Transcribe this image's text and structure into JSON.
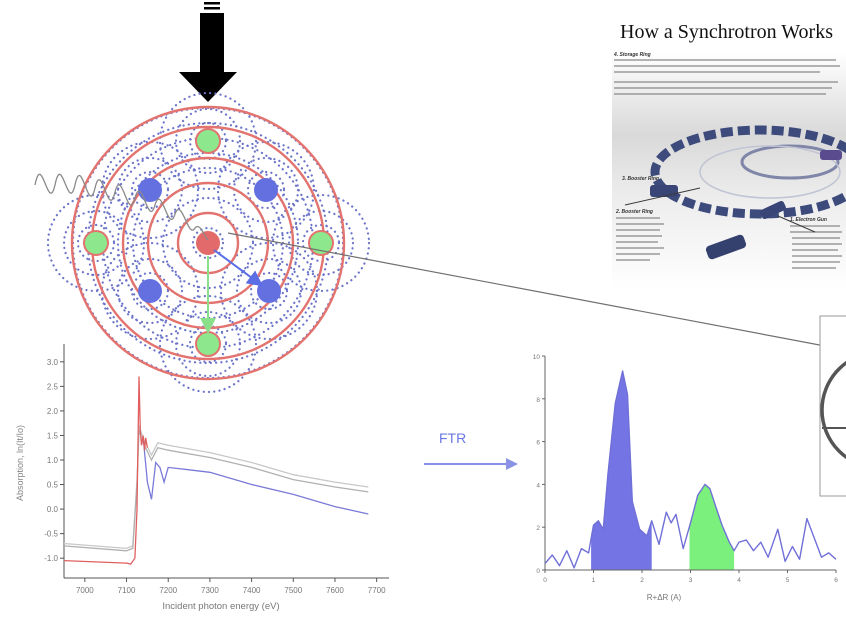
{
  "poster": {
    "title": "How a Synchrotron Works",
    "sections": [
      {
        "label": "4. Storage Ring"
      },
      {
        "label": "2. Booster Ring"
      },
      {
        "label": "3. Booster Ring"
      },
      {
        "label": "1. Electron Gun"
      }
    ]
  },
  "arrow_label": "FTR",
  "chart_data": [
    {
      "type": "line",
      "xlabel": "Incident photon energy (eV)",
      "ylabel": "Absorption, ln(It/Io)",
      "xlim": [
        6950,
        7720
      ],
      "ylim": [
        -1.2,
        3.2
      ],
      "xticks": [
        7000,
        7100,
        7200,
        7300,
        7400,
        7500,
        7600,
        7700
      ],
      "yticks": [
        -1.0,
        -0.5,
        0.0,
        0.5,
        1.0,
        1.5,
        2.0,
        2.5,
        3.0
      ],
      "ytick_labels": [
        "-1.0",
        "-0.5",
        "0.0",
        "0.5",
        "1.0",
        "1.5",
        "2.0",
        "2.5",
        "3.0"
      ],
      "series": [
        {
          "color": "#e06060",
          "x": [
            6950,
            7100,
            7110,
            7120,
            7125,
            7130,
            7133,
            7136,
            7140,
            7143,
            7146,
            7150
          ],
          "y": [
            -1.05,
            -1.1,
            -1.12,
            -1.0,
            0.0,
            2.7,
            1.6,
            1.3,
            1.5,
            1.2,
            1.45,
            1.25
          ]
        },
        {
          "color": "#7a7ad8",
          "x": [
            7140,
            7150,
            7160,
            7170,
            7180,
            7190,
            7200,
            7250,
            7300,
            7400,
            7500,
            7600,
            7680
          ],
          "y": [
            1.45,
            0.55,
            0.2,
            0.95,
            0.85,
            0.55,
            0.85,
            0.8,
            0.75,
            0.5,
            0.3,
            0.05,
            -0.1
          ]
        },
        {
          "color": "#b0b0b0",
          "x": [
            6950,
            7100,
            7115,
            7125,
            7130,
            7140,
            7160,
            7175,
            7200,
            7300,
            7400,
            7500,
            7600,
            7680
          ],
          "y": [
            -0.75,
            -0.85,
            -0.8,
            0.5,
            1.6,
            1.35,
            1.0,
            1.25,
            1.2,
            1.05,
            0.85,
            0.6,
            0.45,
            0.35
          ]
        },
        {
          "color": "#c8c8c8",
          "x": [
            6950,
            7100,
            7115,
            7125,
            7130,
            7140,
            7160,
            7175,
            7200,
            7300,
            7400,
            7500,
            7600,
            7680
          ],
          "y": [
            -0.7,
            -0.8,
            -0.75,
            0.6,
            1.7,
            1.45,
            1.1,
            1.35,
            1.3,
            1.15,
            0.95,
            0.7,
            0.55,
            0.45
          ]
        }
      ]
    },
    {
      "type": "line",
      "xlabel": "R+ΔR (A)",
      "ylabel": "",
      "xlim": [
        0,
        6
      ],
      "ylim": [
        0,
        10
      ],
      "xticks": [
        0,
        1,
        2,
        3,
        4,
        5,
        6
      ],
      "yticks": [
        0,
        2,
        4,
        6,
        8,
        10
      ],
      "series": [
        {
          "color": "#7070d8",
          "x": [
            0,
            0.15,
            0.3,
            0.45,
            0.6,
            0.75,
            0.9,
            1.0,
            1.1,
            1.2,
            1.3,
            1.45,
            1.6,
            1.7,
            1.8,
            1.95,
            2.1,
            2.2,
            2.35,
            2.5,
            2.6,
            2.7,
            2.85,
            3.0,
            3.15,
            3.3,
            3.4,
            3.5,
            3.65,
            3.8,
            3.9,
            4.0,
            4.15,
            4.3,
            4.45,
            4.6,
            4.8,
            4.95,
            5.1,
            5.25,
            5.4,
            5.55,
            5.7,
            5.85,
            6.0
          ],
          "y": [
            0.3,
            0.7,
            0.2,
            0.9,
            0.1,
            1.0,
            0.8,
            2.1,
            2.3,
            1.9,
            4.5,
            7.8,
            9.3,
            8.2,
            3.2,
            1.9,
            1.6,
            2.3,
            1.2,
            2.7,
            2.2,
            2.6,
            1.0,
            2.2,
            3.5,
            4.0,
            3.8,
            3.1,
            2.1,
            1.3,
            0.9,
            1.3,
            1.4,
            0.9,
            1.3,
            0.6,
            1.9,
            0.4,
            1.1,
            0.5,
            2.4,
            1.5,
            0.6,
            0.8,
            0.5
          ]
        }
      ],
      "fills": [
        {
          "color": "#7474e4",
          "from": 0.95,
          "to": 2.2
        },
        {
          "color": "#7cf07c",
          "from": 2.98,
          "to": 3.9
        }
      ]
    }
  ]
}
